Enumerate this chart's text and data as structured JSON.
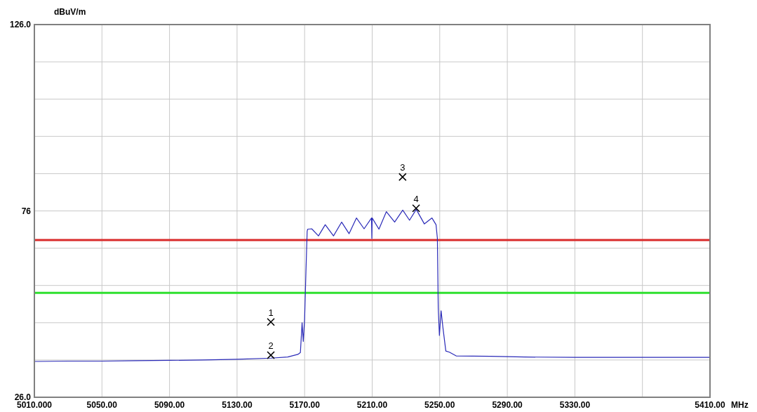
{
  "chart_data": {
    "type": "line",
    "xlabel": "MHz",
    "ylabel": "dBuV/m",
    "xlim": [
      5010,
      5410
    ],
    "xticks": [
      {
        "value": 5010,
        "label": "5010.000"
      },
      {
        "value": 5050,
        "label": "5050.00"
      },
      {
        "value": 5090,
        "label": "5090.00"
      },
      {
        "value": 5130,
        "label": "5130.00"
      },
      {
        "value": 5170,
        "label": "5170.00"
      },
      {
        "value": 5210,
        "label": "5210.00"
      },
      {
        "value": 5250,
        "label": "5250.00"
      },
      {
        "value": 5290,
        "label": "5290.00"
      },
      {
        "value": 5330,
        "label": "5330.00"
      },
      {
        "value": 5370,
        "label": null
      },
      {
        "value": 5410,
        "label": "5410.00"
      }
    ],
    "ylim": [
      26,
      126
    ],
    "yticks": [
      {
        "value": 26,
        "label": "26.0"
      },
      {
        "value": 36,
        "label": null
      },
      {
        "value": 46,
        "label": null
      },
      {
        "value": 56,
        "label": null
      },
      {
        "value": 66,
        "label": null
      },
      76,
      {
        "value": 86,
        "label": null
      },
      {
        "value": 96,
        "label": null
      },
      {
        "value": 106,
        "label": null
      },
      {
        "value": 116,
        "label": null
      },
      {
        "value": 126,
        "label": "126.0"
      }
    ],
    "grid": true,
    "series": [
      {
        "color": "#2a2ab8",
        "x": [
          5010,
          5030,
          5050,
          5070,
          5090,
          5110,
          5130,
          5150,
          5160,
          5166,
          5167.5,
          5168.5,
          5169.2,
          5170,
          5170.8,
          5171.5,
          5171.8,
          5174.2,
          5178.2,
          5182.2,
          5187.1,
          5191.9,
          5196.3,
          5200.7,
          5205.2,
          5209.6,
          5209.8,
          5210,
          5214,
          5218.4,
          5223.3,
          5228.1,
          5232.1,
          5236.1,
          5240.9,
          5245.4,
          5247.8,
          5248.6,
          5249.1,
          5249.8,
          5250.8,
          5251.8,
          5253.6,
          5255.7,
          5259.7,
          5280,
          5300,
          5330,
          5360,
          5390,
          5410
        ],
        "values": [
          35.6,
          35.7,
          35.7,
          35.8,
          35.9,
          36,
          36.2,
          36.5,
          36.8,
          37.5,
          38,
          46,
          41,
          47,
          60,
          70.5,
          71.1,
          71.2,
          69.3,
          72.3,
          69.3,
          73,
          69.9,
          74.1,
          71.2,
          74.1,
          68.6,
          74.1,
          71.1,
          75.8,
          73,
          76.2,
          73.5,
          76.4,
          72.5,
          74.1,
          72.3,
          68.6,
          50.1,
          42.6,
          49.2,
          45,
          38.4,
          38.1,
          37.1,
          37,
          36.8,
          36.7,
          36.7,
          36.7,
          36.7
        ]
      },
      {
        "type": "scatter",
        "marker": "cross",
        "color": "#000000",
        "x": [
          5150,
          5150,
          5228,
          5236
        ],
        "values": [
          46.2,
          37.3,
          85.1,
          76.7
        ]
      }
    ],
    "ref_lines": [
      {
        "axis": "y",
        "value": 68.2,
        "color": "#d92b2b"
      },
      {
        "axis": "y",
        "value": 54,
        "color": "#2ee02e"
      }
    ],
    "annotations": [
      {
        "text": "1",
        "x": 5150,
        "y": 46.2
      },
      {
        "text": "2",
        "x": 5150,
        "y": 37.3
      },
      {
        "text": "3",
        "x": 5228,
        "y": 85.1
      },
      {
        "text": "4",
        "x": 5236,
        "y": 76.7
      }
    ]
  }
}
